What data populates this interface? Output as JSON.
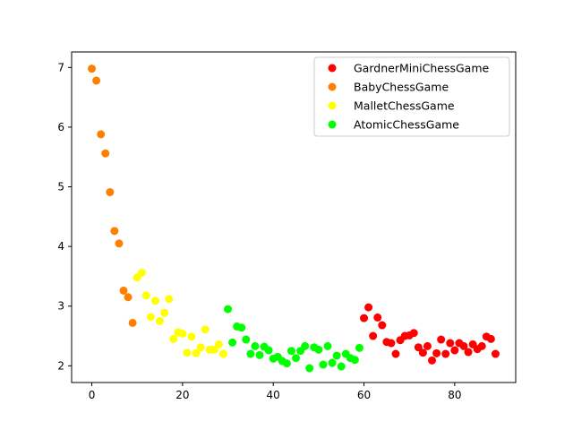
{
  "chart_data": {
    "type": "scatter",
    "title": "",
    "xlabel": "",
    "ylabel": "",
    "xlim": [
      -4.45,
      93.45
    ],
    "ylim": [
      1.72,
      7.26
    ],
    "xticks": [
      0,
      20,
      40,
      60,
      80
    ],
    "yticks": [
      2,
      3,
      4,
      5,
      6,
      7
    ],
    "grid": false,
    "legend_position": "top-right",
    "series": [
      {
        "name": "GardnerMiniChessGame",
        "color": "#ff0000",
        "x": [
          60,
          61,
          62,
          63,
          64,
          65,
          66,
          67,
          68,
          69,
          70,
          71,
          72,
          73,
          74,
          75,
          76,
          77,
          78,
          79,
          80,
          81,
          82,
          83,
          84,
          85,
          86,
          87,
          88,
          89
        ],
        "y": [
          2.8,
          2.98,
          2.5,
          2.81,
          2.68,
          2.4,
          2.38,
          2.2,
          2.43,
          2.5,
          2.51,
          2.55,
          2.31,
          2.22,
          2.33,
          2.09,
          2.21,
          2.44,
          2.2,
          2.38,
          2.26,
          2.38,
          2.33,
          2.23,
          2.36,
          2.28,
          2.33,
          2.49,
          2.45,
          2.2
        ]
      },
      {
        "name": "BabyChessGame",
        "color": "#ff8000",
        "x": [
          0,
          1,
          2,
          3,
          4,
          5,
          6,
          7,
          8,
          9
        ],
        "y": [
          6.98,
          6.78,
          5.88,
          5.56,
          4.91,
          4.26,
          4.05,
          3.26,
          3.15,
          2.72
        ]
      },
      {
        "name": "MalletChessGame",
        "color": "#ffff00",
        "x": [
          10,
          11,
          12,
          13,
          14,
          15,
          16,
          17,
          18,
          19,
          20,
          21,
          22,
          23,
          24,
          25,
          26,
          27,
          28,
          29
        ],
        "y": [
          3.48,
          3.56,
          3.18,
          2.82,
          3.09,
          2.75,
          2.89,
          3.12,
          2.45,
          2.56,
          2.54,
          2.22,
          2.49,
          2.21,
          2.31,
          2.61,
          2.27,
          2.27,
          2.36,
          2.2
        ]
      },
      {
        "name": "AtomicChessGame",
        "color": "#00ff00",
        "x": [
          30,
          31,
          32,
          33,
          34,
          35,
          36,
          37,
          38,
          39,
          40,
          41,
          42,
          43,
          44,
          45,
          46,
          47,
          48,
          49,
          50,
          51,
          52,
          53,
          54,
          55,
          56,
          57,
          58,
          59
        ],
        "y": [
          2.95,
          2.39,
          2.66,
          2.64,
          2.44,
          2.2,
          2.33,
          2.18,
          2.32,
          2.26,
          2.12,
          2.15,
          2.08,
          2.04,
          2.25,
          2.13,
          2.25,
          2.33,
          1.96,
          2.31,
          2.27,
          2.02,
          2.33,
          2.05,
          2.17,
          1.99,
          2.2,
          2.13,
          2.1,
          2.3
        ]
      }
    ]
  }
}
